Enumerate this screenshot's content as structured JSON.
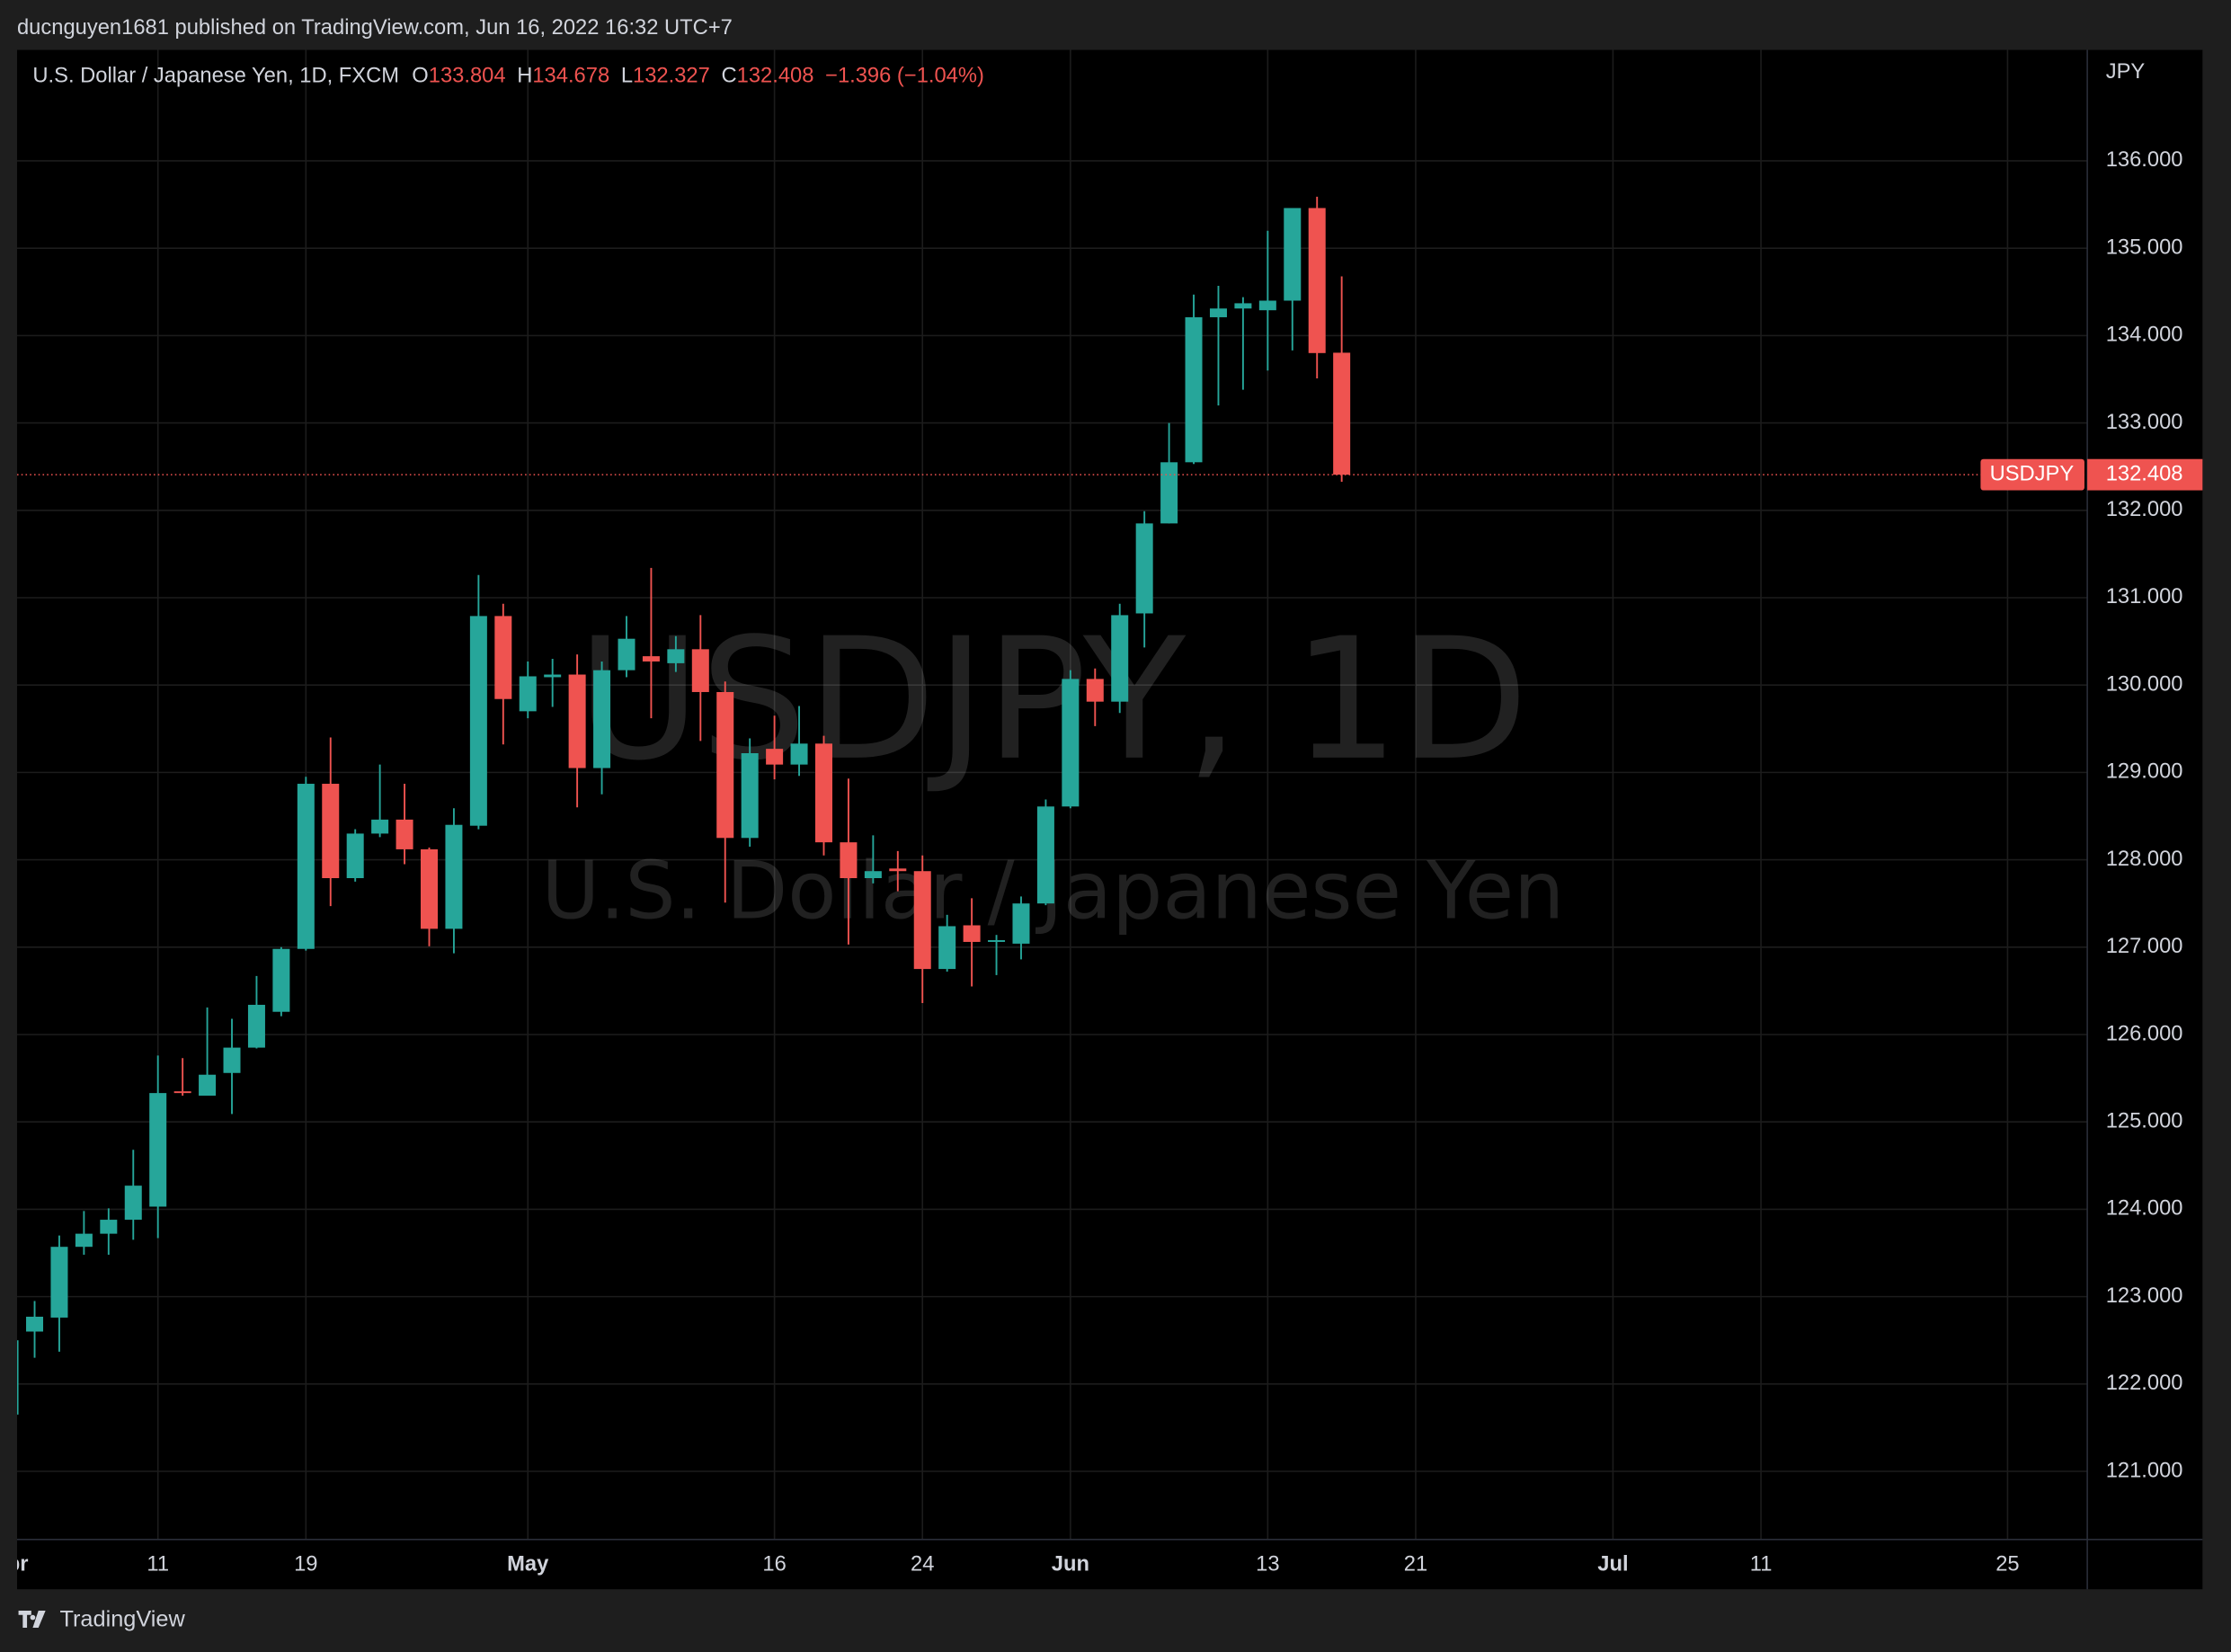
{
  "header": {
    "published": "ducnguyen1681 published on TradingView.com, Jun 16, 2022 16:32 UTC+7"
  },
  "chart_data": {
    "type": "candlestick",
    "title": "U.S. Dollar / Japanese Yen, 1D, FXCM",
    "ohlc_labels": [
      "O",
      "H",
      "L",
      "C"
    ],
    "change": "−1.396 (−1.04%)",
    "symbol": "USDJPY",
    "currency": "JPY",
    "watermark": "USDJPY, 1D",
    "watermark_sub": "U.S. Dollar / Japanese Yen",
    "up_color": "#26a69a",
    "down_color": "#ef5350",
    "grid": true,
    "categories": [
      "Apr",
      null,
      null,
      null,
      null,
      null,
      "11",
      null,
      null,
      null,
      null,
      null,
      "19",
      null,
      null,
      null,
      null,
      null,
      null,
      null,
      null,
      "May",
      null,
      null,
      null,
      null,
      null,
      null,
      null,
      null,
      null,
      "16",
      null,
      null,
      null,
      null,
      null,
      "24",
      null,
      null,
      null,
      null,
      null,
      "Jun",
      null,
      null,
      null,
      null,
      null,
      null,
      null,
      "13",
      null,
      null,
      null,
      null,
      null,
      "21",
      null,
      null,
      null,
      null,
      null,
      null,
      null,
      "Jul",
      null,
      null,
      null,
      null,
      null,
      "11",
      null,
      null,
      null,
      null,
      null,
      null,
      null,
      null,
      null,
      "25",
      null,
      null,
      null
    ],
    "open": [
      121.65,
      122.6,
      122.76,
      123.57,
      123.72,
      123.88,
      124.03,
      125.35,
      125.3,
      125.56,
      125.85,
      126.26,
      126.98,
      128.87,
      127.79,
      128.3,
      128.46,
      128.12,
      127.21,
      128.39,
      130.79,
      129.7,
      130.09,
      130.12,
      129.05,
      130.17,
      130.33,
      130.25,
      130.41,
      129.92,
      128.25,
      129.27,
      129.09,
      129.33,
      128.2,
      127.79,
      127.9,
      127.87,
      126.75,
      127.25,
      127.06,
      127.04,
      127.5,
      128.61,
      130.07,
      129.81,
      130.82,
      131.85,
      132.55,
      134.21,
      134.31,
      134.29,
      134.4,
      135.46,
      133.804,
      null,
      null,
      null,
      null,
      null,
      null,
      null,
      null,
      null,
      null,
      null,
      null,
      null,
      null,
      null,
      null,
      null,
      null,
      null,
      null,
      null,
      null,
      null,
      null,
      null,
      null,
      null,
      null,
      null,
      null
    ],
    "high": [
      122.55,
      122.95,
      123.7,
      123.98,
      124.01,
      124.68,
      125.76,
      125.73,
      126.31,
      126.18,
      126.67,
      127.0,
      128.95,
      129.4,
      128.35,
      129.09,
      128.87,
      128.14,
      128.59,
      131.26,
      130.93,
      130.27,
      130.3,
      130.35,
      130.27,
      130.79,
      131.34,
      130.56,
      130.8,
      130.04,
      129.39,
      129.65,
      129.76,
      129.42,
      128.93,
      128.28,
      128.1,
      128.05,
      127.37,
      127.56,
      127.14,
      127.58,
      128.69,
      130.17,
      130.19,
      130.93,
      131.99,
      133.0,
      134.47,
      134.57,
      134.44,
      135.2,
      135.46,
      135.59,
      134.678,
      null,
      null,
      null,
      null,
      null,
      null,
      null,
      null,
      null,
      null,
      null,
      null,
      null,
      null,
      null,
      null,
      null,
      null,
      null,
      null,
      null,
      null,
      null,
      null,
      null,
      null,
      null,
      null,
      null,
      null
    ],
    "low": [
      121.6,
      122.3,
      122.37,
      123.48,
      123.48,
      123.65,
      123.67,
      125.3,
      125.3,
      125.09,
      125.84,
      126.21,
      126.96,
      127.47,
      127.75,
      128.26,
      127.95,
      127.01,
      126.93,
      128.35,
      129.32,
      129.62,
      129.75,
      128.6,
      128.75,
      130.09,
      129.62,
      130.15,
      129.36,
      127.51,
      128.15,
      128.92,
      128.96,
      128.05,
      127.03,
      127.73,
      127.64,
      126.36,
      126.72,
      126.55,
      126.68,
      126.86,
      127.48,
      128.59,
      129.53,
      129.68,
      130.43,
      131.85,
      132.53,
      133.2,
      133.38,
      133.6,
      133.83,
      133.51,
      132.327,
      null,
      null,
      null,
      null,
      null,
      null,
      null,
      null,
      null,
      null,
      null,
      null,
      null,
      null,
      null,
      null,
      null,
      null,
      null,
      null,
      null,
      null,
      null,
      null,
      null,
      null,
      null,
      null,
      null,
      null
    ],
    "close": [
      122.5,
      122.77,
      123.57,
      123.72,
      123.88,
      124.27,
      125.33,
      125.33,
      125.54,
      125.85,
      126.34,
      126.98,
      128.87,
      127.79,
      128.3,
      128.46,
      128.12,
      127.21,
      128.4,
      130.79,
      129.84,
      130.1,
      130.12,
      129.05,
      130.17,
      130.53,
      130.27,
      130.41,
      129.92,
      128.25,
      129.22,
      129.09,
      129.33,
      128.2,
      127.79,
      127.87,
      127.87,
      126.75,
      127.24,
      127.06,
      127.08,
      127.5,
      128.61,
      130.07,
      129.81,
      130.8,
      131.85,
      132.55,
      134.21,
      134.31,
      134.37,
      134.4,
      135.46,
      133.8,
      132.408,
      null,
      null,
      null,
      null,
      null,
      null,
      null,
      null,
      null,
      null,
      null,
      null,
      null,
      null,
      null,
      null,
      null,
      null,
      null,
      null,
      null,
      null,
      null,
      null,
      null,
      null,
      null,
      null,
      null,
      null
    ],
    "ylim": [
      120.22,
      137.27
    ],
    "yticks": [
      {
        "value": 121,
        "label": "121.000"
      },
      {
        "value": 122,
        "label": "122.000"
      },
      {
        "value": 123,
        "label": "123.000"
      },
      {
        "value": 124,
        "label": "124.000"
      },
      {
        "value": 125,
        "label": "125.000"
      },
      {
        "value": 126,
        "label": "126.000"
      },
      {
        "value": 127,
        "label": "127.000"
      },
      {
        "value": 128,
        "label": "128.000"
      },
      {
        "value": 129,
        "label": "129.000"
      },
      {
        "value": 130,
        "label": "130.000"
      },
      {
        "value": 131,
        "label": "131.000"
      },
      {
        "value": 132,
        "label": "132.000"
      },
      {
        "value": 133,
        "label": "133.000"
      },
      {
        "value": 134,
        "label": "134.000"
      },
      {
        "value": 135,
        "label": "135.000"
      },
      {
        "value": 136,
        "label": "136.000"
      }
    ]
  },
  "footer": {
    "brand": "TradingView"
  }
}
